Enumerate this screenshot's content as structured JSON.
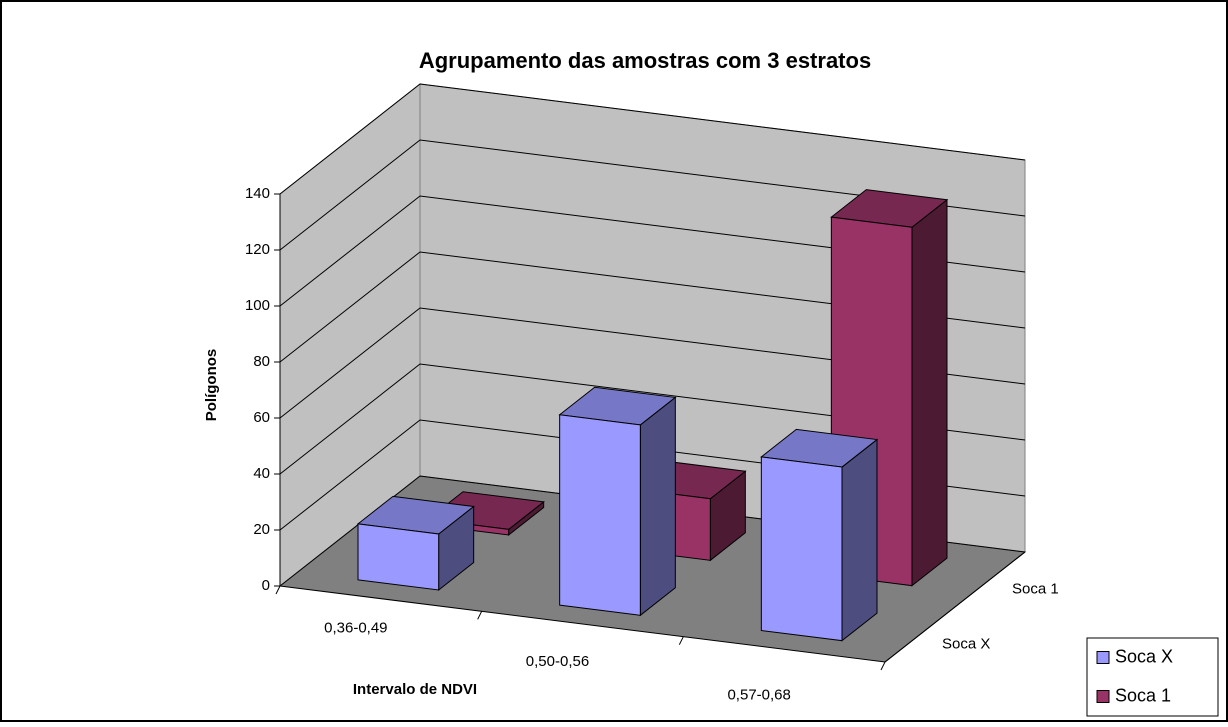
{
  "chart_data": {
    "type": "bar3d",
    "title": "Agrupamento das amostras com 3 estratos",
    "x_label": "Intervalo de NDVI",
    "y_label": "Polígonos",
    "categories": [
      "0,36-0,49",
      "0,50-0,56",
      "0,57-0,68"
    ],
    "series": [
      {
        "name": "Soca X",
        "color": "#9999ff",
        "values": [
          20,
          68,
          62
        ]
      },
      {
        "name": "Soca 1",
        "color": "#993366",
        "values": [
          2,
          22,
          128
        ]
      }
    ],
    "ylim": [
      0,
      140
    ],
    "yticks": [
      0,
      20,
      40,
      60,
      80,
      100,
      120,
      140
    ],
    "grid": true,
    "legend": "lower right"
  }
}
